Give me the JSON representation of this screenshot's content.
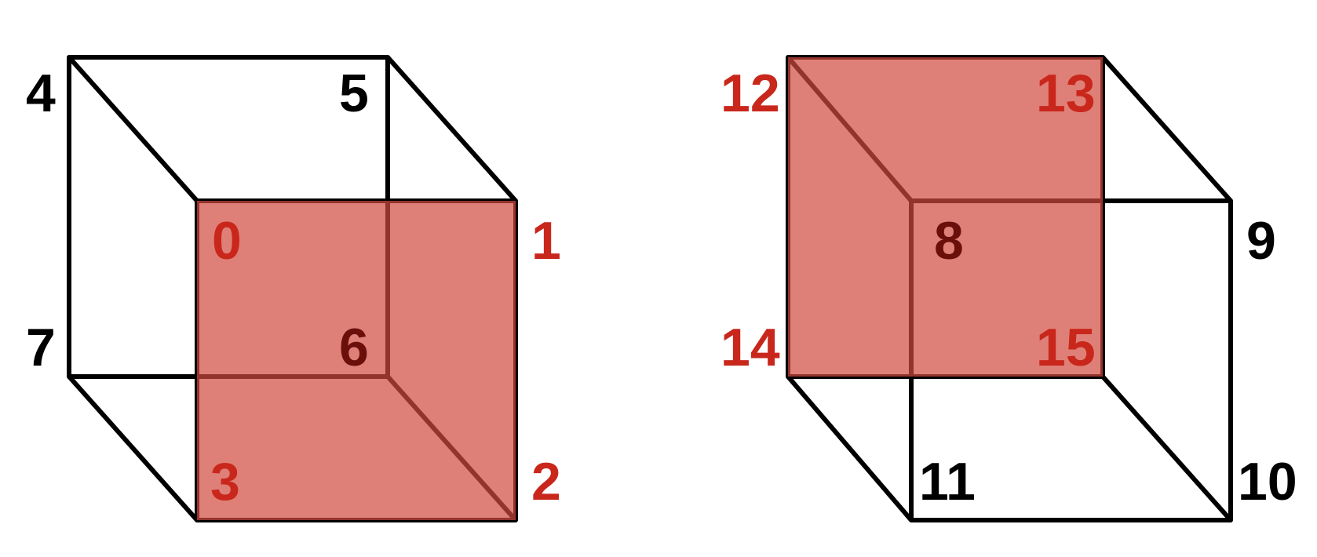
{
  "colors": {
    "edge": "#000000",
    "highlight_fill": "#d24a3e",
    "highlight_label": "#c9271c",
    "plain_label": "#000000",
    "occluded_label": "#6b0f0b"
  },
  "cubes": [
    {
      "name": "left-cube",
      "highlighted_face": "front",
      "vertices": [
        {
          "label": "0",
          "style": "highlight"
        },
        {
          "label": "1",
          "style": "highlight"
        },
        {
          "label": "2",
          "style": "highlight"
        },
        {
          "label": "3",
          "style": "highlight"
        },
        {
          "label": "4",
          "style": "plain"
        },
        {
          "label": "5",
          "style": "plain"
        },
        {
          "label": "6",
          "style": "occluded"
        },
        {
          "label": "7",
          "style": "plain"
        }
      ]
    },
    {
      "name": "right-cube",
      "highlighted_face": "back",
      "vertices": [
        {
          "label": "8",
          "style": "occluded"
        },
        {
          "label": "9",
          "style": "plain"
        },
        {
          "label": "10",
          "style": "plain"
        },
        {
          "label": "11",
          "style": "plain"
        },
        {
          "label": "12",
          "style": "highlight"
        },
        {
          "label": "13",
          "style": "highlight"
        },
        {
          "label": "14",
          "style": "highlight"
        },
        {
          "label": "15",
          "style": "highlight"
        }
      ]
    }
  ]
}
